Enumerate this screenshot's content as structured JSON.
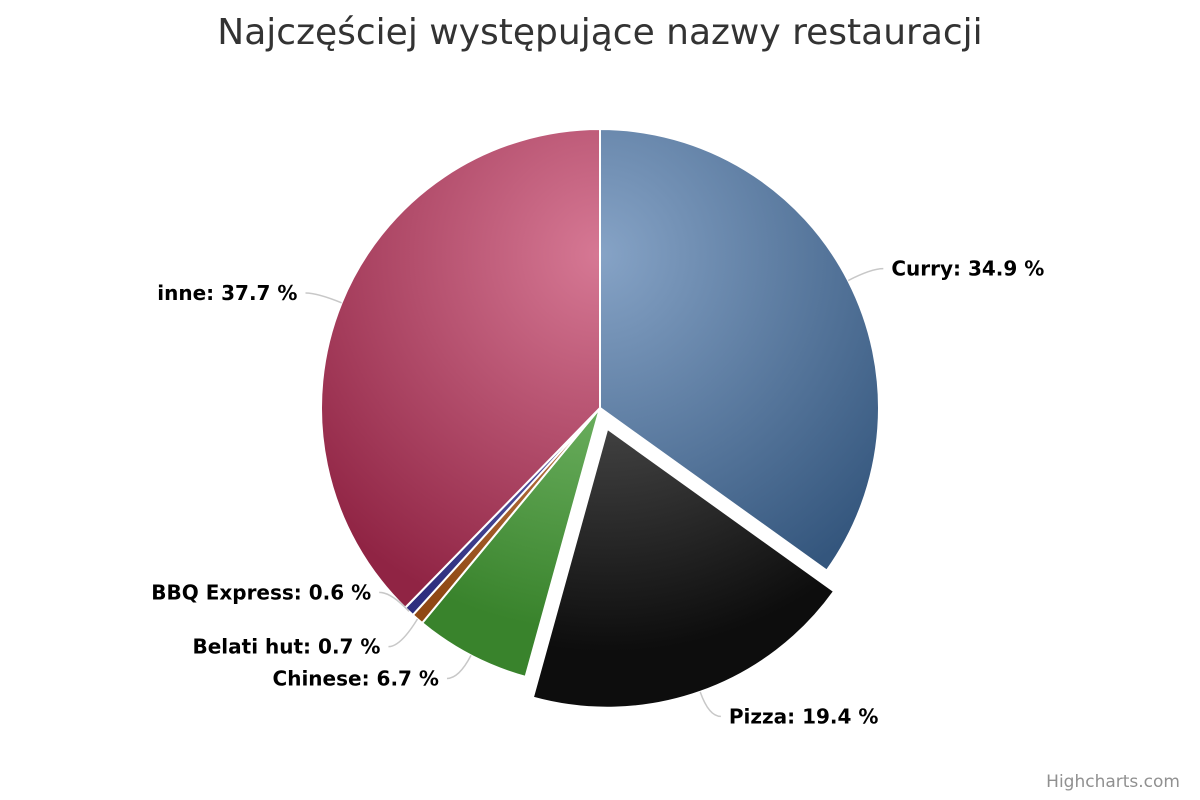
{
  "title": "Najczęściej występujące nazwy restauracji",
  "credits": "Highcharts.com",
  "chart_data": {
    "type": "pie",
    "title": "Najczęściej występujące nazwy restauracji",
    "slices": [
      {
        "name": "Curry",
        "value": 34.9,
        "label": "Curry: 34.9 %",
        "color": "#4572A7",
        "sliced": false
      },
      {
        "name": "Pizza",
        "value": 19.4,
        "label": "Pizza: 19.4 %",
        "color": "#111111",
        "sliced": true
      },
      {
        "name": "Chinese",
        "value": 6.7,
        "label": "Chinese: 6.7 %",
        "color": "#4CAF3A",
        "sliced": false
      },
      {
        "name": "Belati hut",
        "value": 0.7,
        "label": "Belati hut: 0.7 %",
        "color": "#C0601A",
        "sliced": false
      },
      {
        "name": "BBQ Express",
        "value": 0.6,
        "label": "BBQ Express: 0.6 %",
        "color": "#3D3DA8",
        "sliced": false
      },
      {
        "name": "inne",
        "value": 37.7,
        "label": "inne: 37.7 %",
        "color": "#C0305A",
        "sliced": false
      }
    ],
    "start_angle": "12 o'clock",
    "direction": "clockwise",
    "legend": "none",
    "data_labels": "outside-with-connectors"
  }
}
